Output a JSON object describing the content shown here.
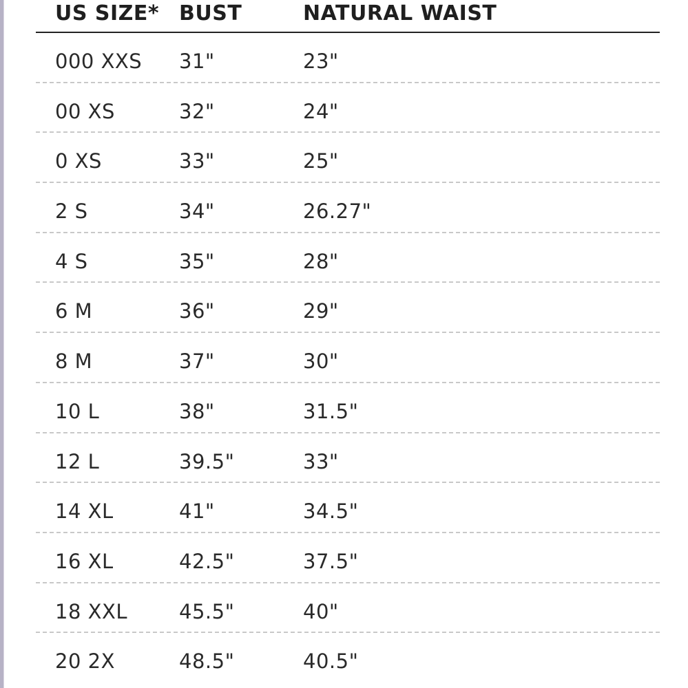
{
  "headers": {
    "size": "US SIZE*",
    "bust": "BUST",
    "waist": "NATURAL WAIST"
  },
  "rows": [
    {
      "size": "000 XXS",
      "bust": "31\"",
      "waist": "23\""
    },
    {
      "size": "00 XS",
      "bust": "32\"",
      "waist": "24\""
    },
    {
      "size": "0 XS",
      "bust": "33\"",
      "waist": "25\""
    },
    {
      "size": "2 S",
      "bust": "34\"",
      "waist": "26.27\""
    },
    {
      "size": "4 S",
      "bust": "35\"",
      "waist": "28\""
    },
    {
      "size": "6 M",
      "bust": "36\"",
      "waist": "29\""
    },
    {
      "size": "8 M",
      "bust": "37\"",
      "waist": "30\""
    },
    {
      "size": "10 L",
      "bust": "38\"",
      "waist": "31.5\""
    },
    {
      "size": "12 L",
      "bust": "39.5\"",
      "waist": "33\""
    },
    {
      "size": "14 XL",
      "bust": "41\"",
      "waist": "34.5\""
    },
    {
      "size": "16 XL",
      "bust": "42.5\"",
      "waist": "37.5\""
    },
    {
      "size": "18 XXL",
      "bust": "45.5\"",
      "waist": "40\""
    },
    {
      "size": "20 2X",
      "bust": "48.5\"",
      "waist": "40.5\""
    }
  ]
}
